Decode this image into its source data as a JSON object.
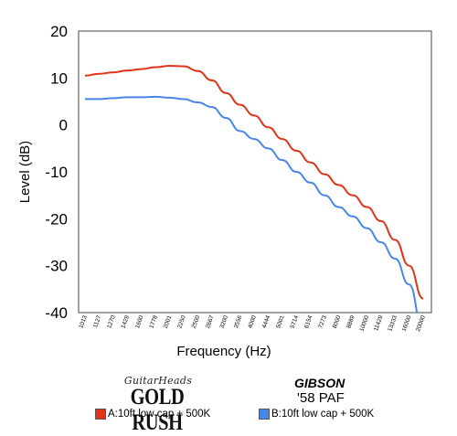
{
  "chart_data": {
    "type": "line",
    "xlabel": "Frequency (Hz)",
    "ylabel": "Level (dB)",
    "ylim": [
      -40,
      20
    ],
    "yticks": [
      "20",
      "10",
      "0",
      "-10",
      "-20",
      "-30",
      "-40"
    ],
    "grid": false,
    "categories": [
      "1013",
      "1127",
      "1270",
      "1429",
      "1600",
      "1778",
      "2001",
      "2250",
      "2500",
      "2667",
      "3200",
      "3556",
      "4000",
      "4444",
      "5001",
      "5714",
      "6154",
      "7273",
      "8000",
      "8889",
      "10000",
      "11429",
      "13333",
      "16000",
      "20000"
    ],
    "series": [
      {
        "name": "A:10ft low cap + 500K",
        "color": "#e0341a",
        "values": [
          10.5,
          10.9,
          11.2,
          11.6,
          11.9,
          12.3,
          12.6,
          12.5,
          11.5,
          9.5,
          6.8,
          4.3,
          2.0,
          -0.5,
          -3.0,
          -5.5,
          -8.0,
          -10.5,
          -12.8,
          -15.0,
          -17.5,
          -20.5,
          -24.5,
          -30.0,
          -37.0
        ]
      },
      {
        "name": "B:10ft low cap + 500K",
        "color": "#4a86e8",
        "values": [
          5.5,
          5.5,
          5.7,
          5.9,
          5.9,
          6.0,
          5.8,
          5.5,
          4.8,
          3.8,
          1.5,
          -1.3,
          -3.0,
          -5.0,
          -7.5,
          -10.0,
          -12.3,
          -15.0,
          -17.5,
          -19.5,
          -22.0,
          -25.0,
          -28.5,
          -34.0,
          -44.0
        ]
      }
    ]
  },
  "brands": {
    "a_top": "GuitarHeads",
    "a_main": "GOLD RUSH",
    "b_top": "GIBSON",
    "b_main": "'58 PAF"
  },
  "legend": {
    "a_label": "A:10ft low cap + 500K",
    "a_color": "#e0341a",
    "b_label": "B:10ft low cap + 500K",
    "b_color": "#4a86e8"
  }
}
